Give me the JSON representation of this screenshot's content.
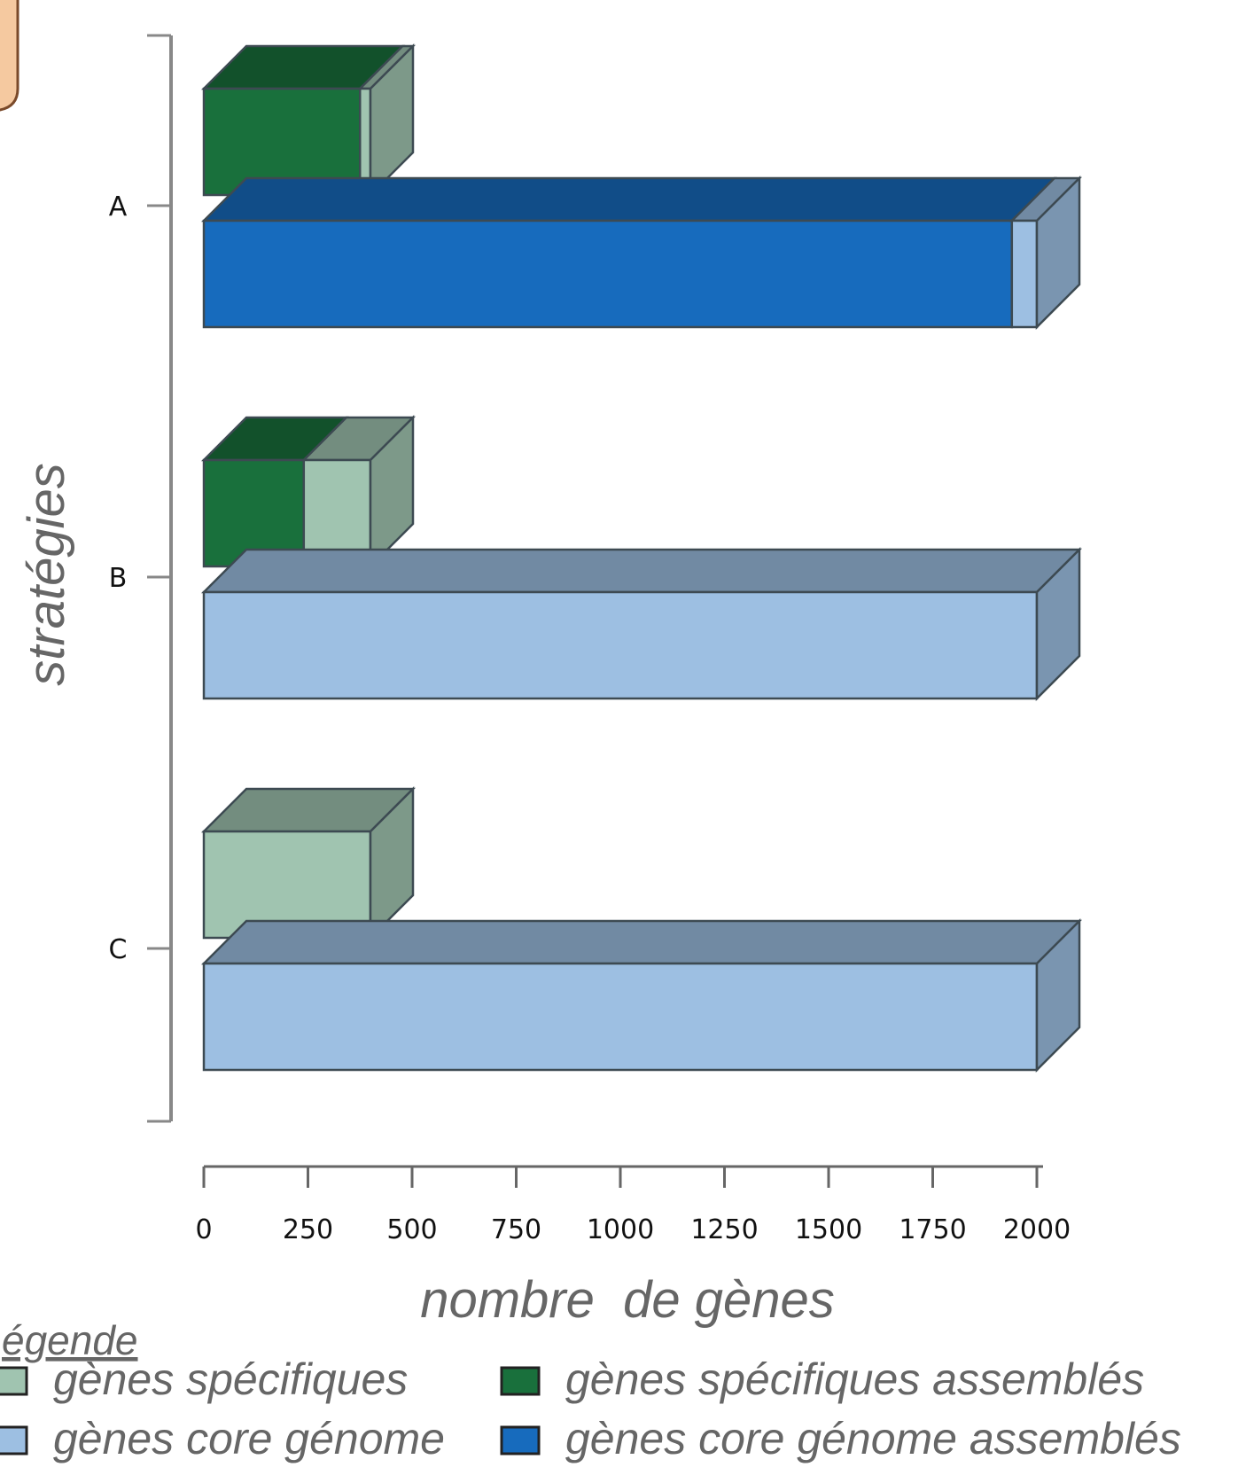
{
  "chart_data": {
    "type": "bar",
    "orientation": "horizontal",
    "style": "3d-stacked",
    "categories": [
      "A",
      "B",
      "C"
    ],
    "xlabel": "nombre  de gènes",
    "ylabel": "stratégies",
    "xlim": [
      0,
      2000
    ],
    "xticks": [
      0,
      250,
      500,
      750,
      1000,
      1250,
      1500,
      1750,
      2000
    ],
    "grid": false,
    "groups": [
      {
        "category": "A",
        "specific": [
          {
            "series": "gènes spécifiques assemblés",
            "value": 375
          },
          {
            "series": "gènes spécifiques",
            "value": 25
          }
        ],
        "core": [
          {
            "series": "gènes core génome assemblés",
            "value": 1940
          },
          {
            "series": "gènes core génome",
            "value": 60
          }
        ]
      },
      {
        "category": "B",
        "specific": [
          {
            "series": "gènes spécifiques assemblés",
            "value": 240
          },
          {
            "series": "gènes spécifiques",
            "value": 160
          }
        ],
        "core": [
          {
            "series": "gènes core génome assemblés",
            "value": 0
          },
          {
            "series": "gènes core génome",
            "value": 2000
          }
        ]
      },
      {
        "category": "C",
        "specific": [
          {
            "series": "gènes spécifiques assemblés",
            "value": 0
          },
          {
            "series": "gènes spécifiques",
            "value": 400
          }
        ],
        "core": [
          {
            "series": "gènes core génome assemblés",
            "value": 0
          },
          {
            "series": "gènes core génome",
            "value": 2000
          }
        ]
      }
    ],
    "colors": {
      "gènes spécifiques": "#a0c4b0",
      "gènes spécifiques assemblés": "#19703c",
      "gènes core génome": "#9dbfe2",
      "gènes core génome assemblés": "#176bbd"
    },
    "legend": {
      "title": "égende",
      "placement": "bottom-left",
      "items": [
        {
          "label": "gènes spécifiques",
          "color": "#a0c4b0"
        },
        {
          "label": "gènes spécifiques assemblés",
          "color": "#19703c"
        },
        {
          "label": "gènes core génome",
          "color": "#9dbfe2"
        },
        {
          "label": "gènes core génome assemblés",
          "color": "#176bbd"
        }
      ]
    }
  }
}
